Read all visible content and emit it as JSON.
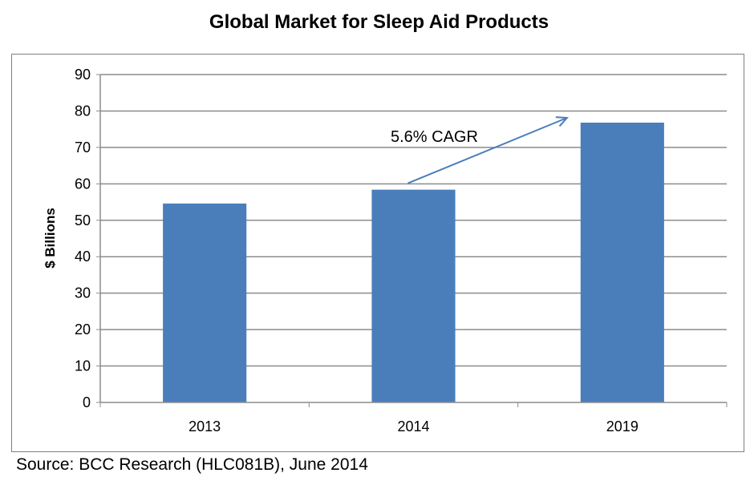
{
  "chart_data": {
    "type": "bar",
    "title": "Global Market for Sleep Aid Products",
    "xlabel": "",
    "ylabel": "$ Billions",
    "categories": [
      "2013",
      "2014",
      "2019"
    ],
    "values": [
      54.6,
      58.4,
      76.8
    ],
    "ylim": [
      0,
      90
    ],
    "yticks": [
      "0",
      "10",
      "20",
      "30",
      "40",
      "50",
      "60",
      "70",
      "80",
      "90"
    ],
    "grid": true,
    "bar_color": "#4a7ebb",
    "annotation": {
      "text": "5.6% CAGR",
      "type": "arrow",
      "from_category": "2014",
      "to_category": "2019"
    },
    "source": "Source: BCC Research (HLC081B), June 2014"
  }
}
